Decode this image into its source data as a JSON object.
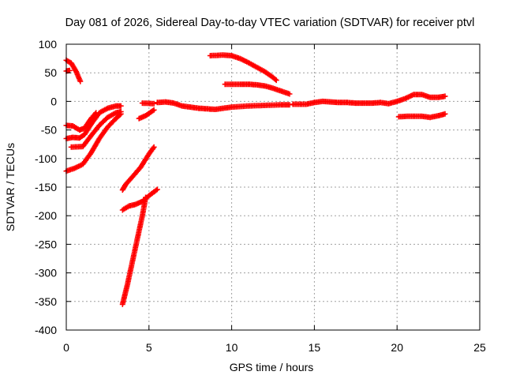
{
  "chart_data": {
    "type": "scatter",
    "title": "Day 081 of 2026, Sidereal Day-to-day VTEC variation (SDTVAR) for receiver ptvl",
    "xlabel": "GPS time / hours",
    "ylabel": "SDTVAR / TECUs",
    "xlim": [
      0,
      25
    ],
    "ylim": [
      -400,
      100
    ],
    "xticks": [
      0,
      5,
      10,
      15,
      20,
      25
    ],
    "yticks": [
      100,
      50,
      0,
      -50,
      -100,
      -150,
      -200,
      -250,
      -300,
      -350,
      -400
    ],
    "grid": true,
    "marker": "plus",
    "series": [
      {
        "color": "#ff0000",
        "tracks": [
          [
            [
              0.0,
              72
            ],
            [
              0.3,
              67
            ],
            [
              0.6,
              52
            ],
            [
              0.85,
              35
            ]
          ],
          [
            [
              0.0,
              53
            ],
            [
              0.2,
              54
            ]
          ],
          [
            [
              0.0,
              -42
            ],
            [
              0.4,
              -43
            ],
            [
              0.8,
              -50
            ],
            [
              1.1,
              -47
            ],
            [
              1.5,
              -30
            ],
            [
              1.8,
              -20
            ]
          ],
          [
            [
              0.0,
              -65
            ],
            [
              0.4,
              -63
            ],
            [
              0.8,
              -64
            ],
            [
              1.1,
              -58
            ],
            [
              1.5,
              -40
            ],
            [
              2.0,
              -20
            ],
            [
              2.5,
              -12
            ],
            [
              3.0,
              -8
            ],
            [
              3.3,
              -8
            ]
          ],
          [
            [
              0.3,
              -80
            ],
            [
              1.0,
              -79
            ],
            [
              1.5,
              -60
            ],
            [
              2.0,
              -42
            ],
            [
              2.5,
              -28
            ],
            [
              3.0,
              -20
            ],
            [
              3.3,
              -18
            ]
          ],
          [
            [
              0.0,
              -122
            ],
            [
              0.5,
              -117
            ],
            [
              1.0,
              -110
            ],
            [
              1.5,
              -90
            ],
            [
              2.0,
              -65
            ],
            [
              2.5,
              -45
            ],
            [
              3.0,
              -30
            ],
            [
              3.3,
              -22
            ]
          ],
          [
            [
              3.4,
              -155
            ],
            [
              3.6,
              -145
            ],
            [
              4.0,
              -132
            ],
            [
              4.5,
              -115
            ],
            [
              5.0,
              -92
            ],
            [
              5.3,
              -80
            ]
          ],
          [
            [
              3.4,
              -190
            ],
            [
              3.8,
              -183
            ],
            [
              4.2,
              -180
            ],
            [
              4.6,
              -175
            ],
            [
              5.0,
              -165
            ],
            [
              5.5,
              -154
            ]
          ],
          [
            [
              3.4,
              -355
            ],
            [
              3.7,
              -320
            ],
            [
              4.0,
              -280
            ],
            [
              4.3,
              -240
            ],
            [
              4.6,
              -200
            ],
            [
              4.8,
              -168
            ]
          ],
          [
            [
              4.4,
              -30
            ],
            [
              4.8,
              -25
            ],
            [
              5.3,
              -15
            ]
          ],
          [
            [
              4.6,
              -3
            ],
            [
              5.3,
              -4
            ]
          ],
          [
            [
              5.5,
              -2
            ],
            [
              6.0,
              -1
            ],
            [
              6.5,
              -3
            ],
            [
              7.0,
              -8
            ],
            [
              7.5,
              -10
            ],
            [
              8.0,
              -12
            ],
            [
              8.5,
              -13
            ],
            [
              9.0,
              -14
            ],
            [
              9.5,
              -12
            ],
            [
              10.0,
              -10
            ],
            [
              11.0,
              -8
            ],
            [
              12.0,
              -7
            ],
            [
              13.0,
              -6
            ],
            [
              13.5,
              -6
            ]
          ],
          [
            [
              8.7,
              80
            ],
            [
              9.5,
              81
            ],
            [
              10.0,
              80
            ],
            [
              10.5,
              75
            ],
            [
              11.0,
              68
            ],
            [
              11.5,
              60
            ],
            [
              12.0,
              52
            ],
            [
              12.5,
              42
            ],
            [
              12.7,
              37
            ]
          ],
          [
            [
              9.6,
              30
            ],
            [
              10.5,
              30
            ],
            [
              11.0,
              30
            ],
            [
              11.5,
              29
            ],
            [
              12.0,
              27
            ],
            [
              12.5,
              23
            ],
            [
              13.0,
              18
            ],
            [
              13.5,
              13
            ]
          ],
          [
            [
              13.7,
              -5
            ],
            [
              14.5,
              -5
            ],
            [
              15.0,
              -2
            ],
            [
              15.5,
              0
            ],
            [
              16.0,
              -1
            ],
            [
              16.5,
              -2
            ],
            [
              17.0,
              -2
            ],
            [
              17.5,
              -3
            ],
            [
              18.0,
              -3
            ],
            [
              18.5,
              -3
            ],
            [
              19.0,
              -2
            ],
            [
              19.5,
              -4
            ],
            [
              20.0,
              0
            ],
            [
              20.5,
              5
            ],
            [
              21.0,
              12
            ],
            [
              21.5,
              12
            ],
            [
              22.0,
              7
            ],
            [
              22.5,
              7
            ],
            [
              22.9,
              9
            ]
          ],
          [
            [
              20.1,
              -27
            ],
            [
              20.7,
              -26
            ],
            [
              21.5,
              -26
            ],
            [
              22.0,
              -28
            ],
            [
              22.5,
              -25
            ],
            [
              22.9,
              -22
            ]
          ]
        ]
      }
    ]
  }
}
